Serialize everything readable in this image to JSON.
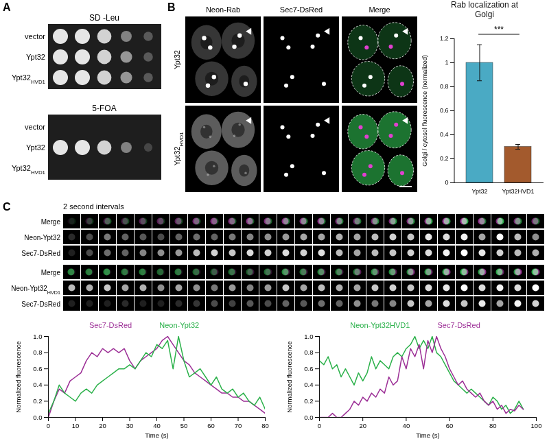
{
  "panel_labels": [
    {
      "text": "A"
    },
    {
      "text": "B"
    },
    {
      "text": "C"
    }
  ],
  "spot_assay": {
    "plates": [
      {
        "title": "SD -Leu",
        "rows": [
          {
            "label": {
              "text": "vector"
            },
            "growth": [
              1,
              1,
              0.9,
              0.5,
              0.3
            ]
          },
          {
            "label": {
              "text": "Ypt32"
            },
            "growth": [
              1,
              1,
              0.9,
              0.6,
              0.3
            ]
          },
          {
            "label": {
              "text": "Ypt32",
              "sub": "HVD1"
            },
            "growth": [
              1,
              1,
              0.9,
              0.6,
              0.3
            ]
          }
        ]
      },
      {
        "title": "5-FOA",
        "rows": [
          {
            "label": {
              "text": "vector"
            },
            "growth": [
              0,
              0,
              0,
              0,
              0
            ]
          },
          {
            "label": {
              "text": "Ypt32"
            },
            "growth": [
              1,
              1,
              0.9,
              0.5,
              0.2
            ]
          },
          {
            "label": {
              "text": "Ypt32",
              "sub": "HVD1"
            },
            "growth": [
              0,
              0,
              0,
              0,
              0
            ]
          }
        ]
      }
    ]
  },
  "microscopy": {
    "channels": [
      {
        "text": "Neon-Rab"
      },
      {
        "text": "Sec7-DsRed"
      },
      {
        "text": "Merge"
      }
    ],
    "rows": [
      {
        "text": "Ypt32"
      },
      {
        "text": "Ypt32",
        "sub": "HVD1"
      }
    ]
  },
  "time_lapse": {
    "interval_label": "2 second intervals",
    "groups": [
      {
        "rows": [
          {
            "text": "Merge"
          },
          {
            "text": "Neon-Ypt32"
          },
          {
            "text": "Sec7-DsRed"
          }
        ]
      },
      {
        "rows": [
          {
            "text": "Merge"
          },
          {
            "text": "Neon-Ypt32",
            "sub": "HVD1"
          },
          {
            "text": "Sec7-DsRed"
          }
        ]
      }
    ]
  },
  "chart_data": [
    {
      "type": "bar",
      "title": "Rab localization at Golgi",
      "ylabel": "Golgi / cytosol fluorescence (normalized)",
      "categories": [
        "Ypt32",
        "Ypt32HVD1"
      ],
      "values": [
        1.0,
        0.3
      ],
      "errors": [
        0.15,
        0.02
      ],
      "colors": [
        "#4aaac4",
        "#a35a2d"
      ],
      "ylim": [
        0,
        1.2
      ],
      "yticks": [
        0,
        0.2,
        0.4,
        0.6,
        0.8,
        1,
        1.2
      ],
      "annotations": [
        "***"
      ],
      "grid": false
    },
    {
      "type": "line",
      "xlabel": "Time (s)",
      "ylabel": "Normalized fluorescence",
      "x": [
        0,
        2,
        4,
        6,
        8,
        10,
        12,
        14,
        16,
        18,
        20,
        22,
        24,
        26,
        28,
        30,
        32,
        34,
        36,
        38,
        40,
        42,
        44,
        46,
        48,
        50,
        52,
        54,
        56,
        58,
        60,
        62,
        64,
        66,
        68,
        70,
        72,
        74,
        76,
        78,
        80
      ],
      "series": [
        {
          "name": "Sec7-DsRed",
          "color": "#9c2f96",
          "values": [
            0.0,
            0.2,
            0.35,
            0.3,
            0.45,
            0.5,
            0.55,
            0.7,
            0.8,
            0.75,
            0.85,
            0.8,
            0.85,
            0.8,
            0.85,
            0.7,
            0.6,
            0.7,
            0.75,
            0.8,
            0.85,
            0.95,
            1.0,
            0.9,
            0.8,
            0.7,
            0.65,
            0.55,
            0.5,
            0.45,
            0.4,
            0.35,
            0.3,
            0.3,
            0.25,
            0.25,
            0.2,
            0.2,
            0.15,
            0.1,
            0.05
          ]
        },
        {
          "name": "Neon-Ypt32",
          "color": "#2bb14a",
          "values": [
            0.05,
            0.2,
            0.4,
            0.3,
            0.25,
            0.2,
            0.3,
            0.35,
            0.3,
            0.4,
            0.45,
            0.5,
            0.55,
            0.6,
            0.6,
            0.65,
            0.6,
            0.7,
            0.8,
            0.75,
            0.9,
            0.85,
            0.95,
            0.6,
            1.0,
            0.7,
            0.5,
            0.55,
            0.6,
            0.5,
            0.4,
            0.5,
            0.35,
            0.3,
            0.35,
            0.25,
            0.3,
            0.2,
            0.15,
            0.25,
            0.1
          ]
        }
      ],
      "xlim": [
        0,
        80
      ],
      "xticks": [
        0,
        10,
        20,
        30,
        40,
        50,
        60,
        70,
        80
      ],
      "ylim": [
        0,
        1
      ],
      "yticks": [
        {
          "value": 0,
          "label": "0.0"
        },
        0.2,
        0.4,
        0.6,
        0.8,
        {
          "value": 1,
          "label": "1.0"
        }
      ],
      "grid": false
    },
    {
      "type": "line",
      "xlabel": "Time (s)",
      "ylabel": "Normalized fluorescence",
      "x": [
        0,
        2,
        4,
        6,
        8,
        10,
        12,
        14,
        16,
        18,
        20,
        22,
        24,
        26,
        28,
        30,
        32,
        34,
        36,
        38,
        40,
        42,
        44,
        46,
        48,
        50,
        52,
        54,
        56,
        58,
        60,
        62,
        64,
        66,
        68,
        70,
        72,
        74,
        76,
        78,
        80,
        82,
        84,
        86,
        88,
        90,
        92,
        94
      ],
      "series": [
        {
          "name": "Neon-Ypt32HVD1",
          "color": "#2bb14a",
          "values": [
            0.7,
            0.65,
            0.75,
            0.6,
            0.65,
            0.5,
            0.6,
            0.5,
            0.4,
            0.55,
            0.45,
            0.55,
            0.75,
            0.6,
            0.7,
            0.65,
            0.6,
            0.75,
            0.8,
            0.75,
            0.85,
            0.9,
            1.0,
            0.85,
            0.95,
            0.85,
            1.0,
            0.8,
            0.75,
            0.65,
            0.55,
            0.45,
            0.4,
            0.35,
            0.3,
            0.35,
            0.3,
            0.25,
            0.2,
            0.15,
            0.25,
            0.2,
            0.1,
            0.15,
            0.05,
            0.1,
            0.2,
            0.1
          ]
        },
        {
          "name": "Sec7-DsRed",
          "color": "#9c2f96",
          "values": [
            0,
            0,
            0,
            0.05,
            0,
            0,
            0.05,
            0.1,
            0.2,
            0.15,
            0.25,
            0.2,
            0.3,
            0.25,
            0.35,
            0.3,
            0.5,
            0.4,
            0.45,
            0.75,
            0.6,
            0.85,
            0.75,
            0.9,
            0.6,
            0.95,
            0.8,
            1.0,
            0.85,
            0.75,
            0.6,
            0.5,
            0.4,
            0.45,
            0.35,
            0.3,
            0.25,
            0.3,
            0.2,
            0.15,
            0.2,
            0.1,
            0.15,
            0.05,
            0.1,
            0.08,
            0.15,
            0.1
          ]
        }
      ],
      "xlim": [
        0,
        100
      ],
      "xticks": [
        0,
        20,
        40,
        60,
        80,
        100
      ],
      "ylim": [
        0,
        1
      ],
      "yticks": [
        {
          "value": 0,
          "label": "0.0"
        },
        0.2,
        0.4,
        0.6,
        0.8,
        {
          "value": 1,
          "label": "1.0"
        }
      ],
      "grid": false
    }
  ]
}
